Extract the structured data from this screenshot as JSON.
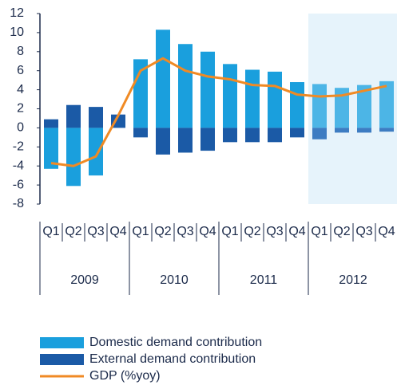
{
  "chart_data": {
    "type": "bar",
    "categories": [
      "Q1",
      "Q2",
      "Q3",
      "Q4",
      "Q1",
      "Q2",
      "Q3",
      "Q4",
      "Q1",
      "Q2",
      "Q3",
      "Q4",
      "Q1",
      "Q2",
      "Q3",
      "Q4"
    ],
    "groups": [
      {
        "label": "2009",
        "span": 4
      },
      {
        "label": "2010",
        "span": 4
      },
      {
        "label": "2011",
        "span": 4
      },
      {
        "label": "2012",
        "span": 4
      }
    ],
    "series": [
      {
        "name": "Domestic demand contribution",
        "kind": "bar",
        "color": "#1a9fdd",
        "forecast_color": "#4cb5e6",
        "values": [
          -4.3,
          -6.1,
          -5.0,
          0,
          7.2,
          10.3,
          8.8,
          8.0,
          6.7,
          6.1,
          5.9,
          4.8,
          4.6,
          4.2,
          4.5,
          4.9
        ]
      },
      {
        "name": "External demand contribution",
        "kind": "bar",
        "color": "#1b5aa6",
        "forecast_color": "#3d7cc2",
        "values": [
          0.9,
          2.4,
          2.2,
          1.4,
          -1.0,
          -2.8,
          -2.6,
          -2.4,
          -1.5,
          -1.5,
          -1.5,
          -1.0,
          -1.2,
          -0.5,
          -0.5,
          -0.4
        ]
      },
      {
        "name": "GDP (%yoy)",
        "kind": "line",
        "color": "#f08a24",
        "values": [
          -3.7,
          -4.0,
          -3.0,
          1.3,
          6.0,
          7.3,
          6.0,
          5.4,
          5.1,
          4.5,
          4.4,
          3.5,
          3.3,
          3.4,
          3.9,
          4.4
        ]
      }
    ],
    "forecast_from": 12,
    "forecast_shade": "#e6f3fb",
    "ylim": [
      -8,
      12
    ],
    "yticks": [
      -8,
      -6,
      -4,
      -2,
      0,
      2,
      4,
      6,
      8,
      10,
      12
    ]
  }
}
